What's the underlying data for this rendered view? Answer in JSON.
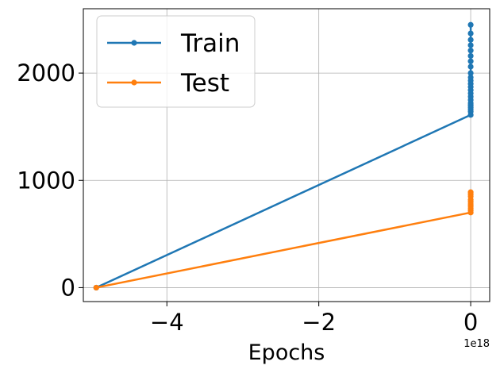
{
  "chart_data": {
    "type": "line",
    "xlabel": "Epochs",
    "ylabel": "",
    "x_offset_label": "1e18",
    "xlim": [
      -5.1,
      0.25
    ],
    "ylim": [
      -130,
      2600
    ],
    "x_ticks": [
      -4,
      -2,
      0
    ],
    "x_tick_labels": [
      "−4",
      "−2",
      "0"
    ],
    "y_ticks": [
      0,
      1000,
      2000
    ],
    "y_tick_labels": [
      "0",
      "1000",
      "2000"
    ],
    "grid": true,
    "legend_position": "top-left",
    "series": [
      {
        "name": "Train",
        "color": "#1f77b4",
        "x": [
          -4.93,
          0,
          0,
          0,
          0,
          0,
          0,
          0,
          0,
          0,
          0,
          0,
          0,
          0,
          0,
          0,
          0,
          0,
          0,
          0,
          0,
          0,
          0,
          0
        ],
        "y": [
          0,
          1610,
          1640,
          1660,
          1680,
          1700,
          1720,
          1750,
          1780,
          1810,
          1840,
          1870,
          1900,
          1930,
          1960,
          2000,
          2060,
          2110,
          2160,
          2210,
          2260,
          2310,
          2370,
          2450
        ]
      },
      {
        "name": "Test",
        "color": "#ff7f0e",
        "x": [
          -4.93,
          0,
          0,
          0,
          0,
          0,
          0,
          0,
          0,
          0,
          0
        ],
        "y": [
          0,
          700,
          720,
          740,
          760,
          780,
          800,
          820,
          850,
          870,
          890
        ]
      }
    ]
  }
}
